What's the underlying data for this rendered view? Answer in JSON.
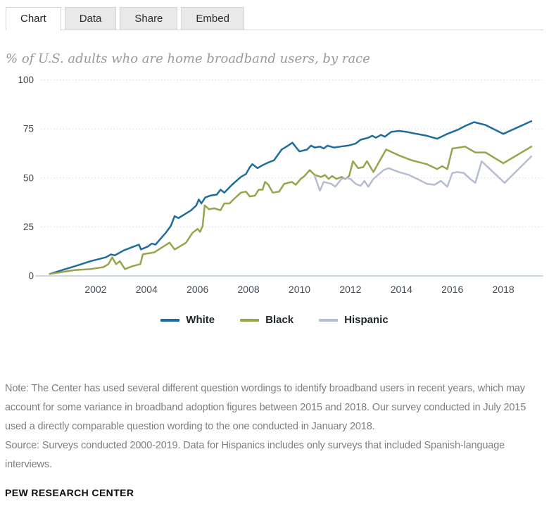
{
  "tabs": [
    {
      "label": "Chart",
      "active": true
    },
    {
      "label": "Data",
      "active": false
    },
    {
      "label": "Share",
      "active": false
    },
    {
      "label": "Embed",
      "active": false
    }
  ],
  "chart_data": {
    "type": "line",
    "title": "% of U.S. adults who are home broadband users, by race",
    "xlabel": "",
    "ylabel": "% of U.S. adults",
    "x_axis": {
      "range": [
        2000,
        2019.6
      ],
      "ticks": [
        2002,
        2004,
        2006,
        2008,
        2010,
        2012,
        2014,
        2016,
        2018
      ]
    },
    "y_axis": {
      "range": [
        0,
        100
      ],
      "ticks": [
        0,
        25,
        50,
        75,
        100
      ],
      "gridline_ticks": [
        25,
        50,
        75,
        100
      ]
    },
    "grid": "dotted-horizontal",
    "legend_position": "bottom",
    "series": [
      {
        "name": "White",
        "color": "#1e6d9c",
        "points": [
          [
            2000.2,
            1
          ],
          [
            2000.7,
            3
          ],
          [
            2001.2,
            5
          ],
          [
            2001.8,
            7.5
          ],
          [
            2002.4,
            9.5
          ],
          [
            2002.6,
            11
          ],
          [
            2002.75,
            10.5
          ],
          [
            2003.1,
            13
          ],
          [
            2003.4,
            14.5
          ],
          [
            2003.7,
            16
          ],
          [
            2003.78,
            13.5
          ],
          [
            2004.05,
            15
          ],
          [
            2004.2,
            16.5
          ],
          [
            2004.35,
            16
          ],
          [
            2004.55,
            19
          ],
          [
            2004.75,
            22
          ],
          [
            2004.95,
            25.5
          ],
          [
            2005.1,
            30.5
          ],
          [
            2005.25,
            29.5
          ],
          [
            2005.5,
            31.5
          ],
          [
            2005.75,
            33.5
          ],
          [
            2005.95,
            36
          ],
          [
            2006.05,
            39
          ],
          [
            2006.15,
            37
          ],
          [
            2006.3,
            40
          ],
          [
            2006.5,
            41
          ],
          [
            2006.75,
            41.5
          ],
          [
            2006.9,
            44
          ],
          [
            2007.05,
            42.5
          ],
          [
            2007.35,
            46.5
          ],
          [
            2007.7,
            50.5
          ],
          [
            2007.9,
            52
          ],
          [
            2008.05,
            55.5
          ],
          [
            2008.15,
            57
          ],
          [
            2008.35,
            55
          ],
          [
            2008.55,
            56.5
          ],
          [
            2008.8,
            58
          ],
          [
            2009.0,
            59
          ],
          [
            2009.3,
            64.5
          ],
          [
            2009.55,
            66.5
          ],
          [
            2009.72,
            68
          ],
          [
            2009.9,
            65
          ],
          [
            2010.0,
            63.5
          ],
          [
            2010.3,
            64.5
          ],
          [
            2010.45,
            66.5
          ],
          [
            2010.6,
            65.5
          ],
          [
            2010.8,
            66
          ],
          [
            2010.95,
            65
          ],
          [
            2011.1,
            66.5
          ],
          [
            2011.35,
            65.5
          ],
          [
            2011.6,
            66
          ],
          [
            2011.9,
            66.5
          ],
          [
            2012.2,
            67.5
          ],
          [
            2012.4,
            69.5
          ],
          [
            2012.7,
            70.5
          ],
          [
            2012.85,
            71.5
          ],
          [
            2013.0,
            70.5
          ],
          [
            2013.2,
            72
          ],
          [
            2013.35,
            71
          ],
          [
            2013.6,
            73.5
          ],
          [
            2013.9,
            74
          ],
          [
            2014.2,
            73.5
          ],
          [
            2014.6,
            72.5
          ],
          [
            2015.0,
            71.5
          ],
          [
            2015.4,
            70
          ],
          [
            2015.8,
            72.5
          ],
          [
            2016.2,
            74.5
          ],
          [
            2016.5,
            76.5
          ],
          [
            2016.85,
            78.5
          ],
          [
            2017.3,
            77
          ],
          [
            2018.0,
            72.5
          ],
          [
            2019.1,
            79
          ]
        ]
      },
      {
        "name": "Black",
        "color": "#9aa34c",
        "points": [
          [
            2000.2,
            1
          ],
          [
            2000.7,
            2
          ],
          [
            2001.2,
            3
          ],
          [
            2001.8,
            3.5
          ],
          [
            2002.3,
            4.5
          ],
          [
            2002.5,
            6
          ],
          [
            2002.65,
            9.5
          ],
          [
            2002.8,
            6
          ],
          [
            2002.95,
            7.5
          ],
          [
            2003.15,
            3.5
          ],
          [
            2003.45,
            5
          ],
          [
            2003.75,
            6
          ],
          [
            2003.85,
            11
          ],
          [
            2004.05,
            11.5
          ],
          [
            2004.3,
            12
          ],
          [
            2004.6,
            14.5
          ],
          [
            2004.9,
            17
          ],
          [
            2005.1,
            13.5
          ],
          [
            2005.3,
            15
          ],
          [
            2005.55,
            17
          ],
          [
            2005.8,
            22
          ],
          [
            2006.0,
            24
          ],
          [
            2006.1,
            22.5
          ],
          [
            2006.2,
            25.5
          ],
          [
            2006.28,
            36
          ],
          [
            2006.45,
            34
          ],
          [
            2006.65,
            34.5
          ],
          [
            2006.9,
            33.5
          ],
          [
            2007.05,
            37
          ],
          [
            2007.25,
            37
          ],
          [
            2007.45,
            39.5
          ],
          [
            2007.7,
            42.5
          ],
          [
            2007.9,
            43
          ],
          [
            2008.05,
            40.5
          ],
          [
            2008.25,
            41
          ],
          [
            2008.4,
            44
          ],
          [
            2008.55,
            44
          ],
          [
            2008.65,
            48
          ],
          [
            2008.78,
            46.5
          ],
          [
            2008.95,
            42.5
          ],
          [
            2009.2,
            43
          ],
          [
            2009.4,
            47
          ],
          [
            2009.7,
            48
          ],
          [
            2009.85,
            46.5
          ],
          [
            2010.05,
            49.5
          ],
          [
            2010.2,
            51
          ],
          [
            2010.4,
            54
          ],
          [
            2010.6,
            51.5
          ],
          [
            2010.85,
            50.5
          ],
          [
            2011.0,
            51.5
          ],
          [
            2011.15,
            49.5
          ],
          [
            2011.28,
            51
          ],
          [
            2011.45,
            49.5
          ],
          [
            2011.65,
            50.5
          ],
          [
            2011.8,
            49.5
          ],
          [
            2011.95,
            51
          ],
          [
            2012.1,
            58.5
          ],
          [
            2012.3,
            55
          ],
          [
            2012.5,
            55.5
          ],
          [
            2012.65,
            58.5
          ],
          [
            2012.9,
            53
          ],
          [
            2013.4,
            64.5
          ],
          [
            2013.9,
            61.5
          ],
          [
            2014.4,
            59
          ],
          [
            2015.0,
            57
          ],
          [
            2015.4,
            54.5
          ],
          [
            2015.6,
            56
          ],
          [
            2015.8,
            54.5
          ],
          [
            2016.0,
            65
          ],
          [
            2016.5,
            66
          ],
          [
            2016.9,
            63
          ],
          [
            2017.3,
            63
          ],
          [
            2018.0,
            57.5
          ],
          [
            2019.1,
            66
          ]
        ]
      },
      {
        "name": "Hispanic",
        "color": "#b5bdd5",
        "points": [
          [
            2010.6,
            51
          ],
          [
            2010.8,
            43.5
          ],
          [
            2010.95,
            48
          ],
          [
            2011.1,
            47.5
          ],
          [
            2011.25,
            47
          ],
          [
            2011.4,
            45.5
          ],
          [
            2011.65,
            49.5
          ],
          [
            2011.85,
            50
          ],
          [
            2012.0,
            49.5
          ],
          [
            2012.2,
            47
          ],
          [
            2012.4,
            46
          ],
          [
            2012.55,
            48.5
          ],
          [
            2012.7,
            45.5
          ],
          [
            2012.9,
            49.5
          ],
          [
            2013.3,
            54
          ],
          [
            2013.5,
            55
          ],
          [
            2013.9,
            53
          ],
          [
            2014.3,
            51.5
          ],
          [
            2014.7,
            49
          ],
          [
            2015.0,
            47
          ],
          [
            2015.3,
            46.5
          ],
          [
            2015.55,
            48.5
          ],
          [
            2015.8,
            45.5
          ],
          [
            2016.0,
            52.5
          ],
          [
            2016.2,
            53
          ],
          [
            2016.45,
            52.5
          ],
          [
            2016.7,
            49.5
          ],
          [
            2016.9,
            47.5
          ],
          [
            2017.15,
            58.5
          ],
          [
            2018.05,
            47.5
          ],
          [
            2019.1,
            61
          ]
        ]
      }
    ]
  },
  "notes": {
    "note_lines": [
      "Note: The Center has used several different question wordings to identify broadband users in recent years, which may",
      "account for some variance in broadband adoption figures between 2015 and 2018. Our survey conducted in July 2015",
      "used a directly comparable question wording to the one conducted in January 2018."
    ],
    "source_lines": [
      "Source: Surveys conducted 2000-2019. Data for Hispanics includes only surveys that included Spanish-language",
      "interviews."
    ],
    "branding": "PEW RESEARCH CENTER"
  },
  "colors": {
    "grid": "#d9d9d9",
    "axis": "#ccd8e2",
    "tab_background": "#e9e9e9",
    "tab_border": "#d4d4d4",
    "title_text": "#999999",
    "note_text": "#7f7f7f"
  }
}
